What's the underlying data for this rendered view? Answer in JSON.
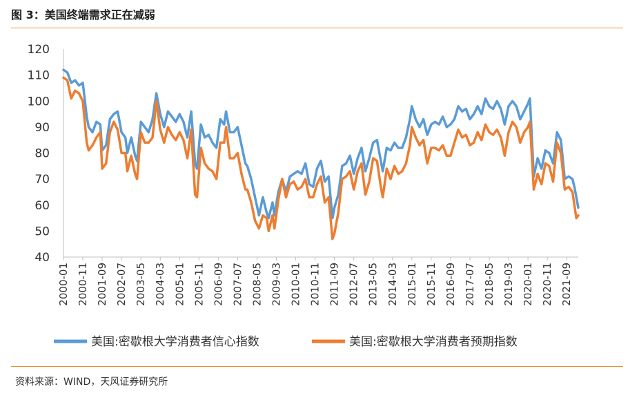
{
  "figure": {
    "title": "图 3：美国终端需求正在减弱",
    "source": "资料来源：WIND，天风证券研究所"
  },
  "colors": {
    "series_1": "#5b9bd5",
    "series_2": "#ed7d31",
    "rule": "#e0922f",
    "axis": "#bfbfbf"
  },
  "chart_data": {
    "type": "line",
    "ylim": [
      40,
      120
    ],
    "yticks": [
      40,
      50,
      60,
      70,
      80,
      90,
      100,
      110,
      120
    ],
    "xtick_labels": [
      "2000-01",
      "2000-11",
      "2001-09",
      "2002-07",
      "2003-05",
      "2004-03",
      "2005-01",
      "2005-11",
      "2006-09",
      "2007-07",
      "2008-05",
      "2009-03",
      "2010-01",
      "2010-11",
      "2011-09",
      "2012-07",
      "2013-05",
      "2014-03",
      "2015-01",
      "2015-11",
      "2016-09",
      "2017-07",
      "2018-05",
      "2019-03",
      "2020-01",
      "2020-11",
      "2021-09"
    ],
    "x_start": "2000-01",
    "x_end": "2022-03",
    "legend_position": "bottom",
    "grid": false,
    "series": [
      {
        "name": "美国:密歇根大学消费者信心指数",
        "points": [
          [
            "2000-01",
            112
          ],
          [
            "2000-03",
            111
          ],
          [
            "2000-05",
            107
          ],
          [
            "2000-07",
            108
          ],
          [
            "2000-09",
            106
          ],
          [
            "2000-11",
            107
          ],
          [
            "2001-01",
            94
          ],
          [
            "2001-02",
            90
          ],
          [
            "2001-04",
            88
          ],
          [
            "2001-06",
            92
          ],
          [
            "2001-08",
            91
          ],
          [
            "2001-09",
            81
          ],
          [
            "2001-11",
            83
          ],
          [
            "2002-01",
            93
          ],
          [
            "2002-03",
            95
          ],
          [
            "2002-05",
            96
          ],
          [
            "2002-07",
            88
          ],
          [
            "2002-09",
            86
          ],
          [
            "2002-10",
            80
          ],
          [
            "2002-12",
            86
          ],
          [
            "2003-02",
            79
          ],
          [
            "2003-03",
            77
          ],
          [
            "2003-05",
            92
          ],
          [
            "2003-07",
            90
          ],
          [
            "2003-09",
            88
          ],
          [
            "2003-11",
            93
          ],
          [
            "2004-01",
            103
          ],
          [
            "2004-03",
            95
          ],
          [
            "2004-05",
            90
          ],
          [
            "2004-07",
            96
          ],
          [
            "2004-09",
            94
          ],
          [
            "2004-11",
            92
          ],
          [
            "2005-01",
            95
          ],
          [
            "2005-03",
            92
          ],
          [
            "2005-05",
            86
          ],
          [
            "2005-07",
            96
          ],
          [
            "2005-09",
            76
          ],
          [
            "2005-10",
            74
          ],
          [
            "2005-12",
            91
          ],
          [
            "2006-02",
            86
          ],
          [
            "2006-04",
            87
          ],
          [
            "2006-06",
            84
          ],
          [
            "2006-08",
            82
          ],
          [
            "2006-10",
            93
          ],
          [
            "2006-12",
            91
          ],
          [
            "2007-01",
            96
          ],
          [
            "2007-03",
            88
          ],
          [
            "2007-05",
            88
          ],
          [
            "2007-07",
            90
          ],
          [
            "2007-09",
            83
          ],
          [
            "2007-11",
            76
          ],
          [
            "2007-12",
            75
          ],
          [
            "2008-02",
            70
          ],
          [
            "2008-04",
            63
          ],
          [
            "2008-06",
            56
          ],
          [
            "2008-08",
            63
          ],
          [
            "2008-10",
            57
          ],
          [
            "2008-11",
            55
          ],
          [
            "2009-01",
            61
          ],
          [
            "2009-02",
            56
          ],
          [
            "2009-04",
            65
          ],
          [
            "2009-06",
            70
          ],
          [
            "2009-08",
            65
          ],
          [
            "2009-10",
            71
          ],
          [
            "2009-12",
            72
          ],
          [
            "2010-02",
            73
          ],
          [
            "2010-04",
            72
          ],
          [
            "2010-06",
            76
          ],
          [
            "2010-08",
            68
          ],
          [
            "2010-10",
            67
          ],
          [
            "2010-12",
            74
          ],
          [
            "2011-02",
            77
          ],
          [
            "2011-04",
            69
          ],
          [
            "2011-06",
            71
          ],
          [
            "2011-08",
            55
          ],
          [
            "2011-09",
            59
          ],
          [
            "2011-11",
            64
          ],
          [
            "2012-01",
            75
          ],
          [
            "2012-03",
            76
          ],
          [
            "2012-05",
            79
          ],
          [
            "2012-07",
            72
          ],
          [
            "2012-09",
            78
          ],
          [
            "2012-11",
            82
          ],
          [
            "2013-01",
            73
          ],
          [
            "2013-03",
            78
          ],
          [
            "2013-05",
            84
          ],
          [
            "2013-07",
            85
          ],
          [
            "2013-09",
            77
          ],
          [
            "2013-10",
            73
          ],
          [
            "2013-12",
            82
          ],
          [
            "2014-02",
            81
          ],
          [
            "2014-04",
            84
          ],
          [
            "2014-06",
            82
          ],
          [
            "2014-08",
            82
          ],
          [
            "2014-10",
            86
          ],
          [
            "2014-12",
            93
          ],
          [
            "2015-01",
            98
          ],
          [
            "2015-03",
            93
          ],
          [
            "2015-05",
            90
          ],
          [
            "2015-07",
            93
          ],
          [
            "2015-09",
            87
          ],
          [
            "2015-11",
            91
          ],
          [
            "2016-01",
            92
          ],
          [
            "2016-03",
            91
          ],
          [
            "2016-05",
            94
          ],
          [
            "2016-07",
            90
          ],
          [
            "2016-09",
            91
          ],
          [
            "2016-11",
            93
          ],
          [
            "2017-01",
            98
          ],
          [
            "2017-03",
            96
          ],
          [
            "2017-05",
            97
          ],
          [
            "2017-07",
            93
          ],
          [
            "2017-09",
            95
          ],
          [
            "2017-11",
            98
          ],
          [
            "2018-01",
            95
          ],
          [
            "2018-03",
            101
          ],
          [
            "2018-05",
            98
          ],
          [
            "2018-07",
            97
          ],
          [
            "2018-09",
            100
          ],
          [
            "2018-11",
            97
          ],
          [
            "2019-01",
            91
          ],
          [
            "2019-03",
            98
          ],
          [
            "2019-05",
            100
          ],
          [
            "2019-07",
            98
          ],
          [
            "2019-09",
            93
          ],
          [
            "2019-11",
            96
          ],
          [
            "2020-01",
            99
          ],
          [
            "2020-02",
            101
          ],
          [
            "2020-04",
            71
          ],
          [
            "2020-06",
            78
          ],
          [
            "2020-08",
            74
          ],
          [
            "2020-10",
            81
          ],
          [
            "2020-12",
            80
          ],
          [
            "2021-02",
            76
          ],
          [
            "2021-04",
            88
          ],
          [
            "2021-06",
            85
          ],
          [
            "2021-08",
            70
          ],
          [
            "2021-10",
            71
          ],
          [
            "2021-12",
            70
          ],
          [
            "2022-01",
            67
          ],
          [
            "2022-02",
            63
          ],
          [
            "2022-03",
            59
          ]
        ]
      },
      {
        "name": "美国:密歇根大学消费者预期指数",
        "points": [
          [
            "2000-01",
            109
          ],
          [
            "2000-03",
            108
          ],
          [
            "2000-05",
            101
          ],
          [
            "2000-07",
            104
          ],
          [
            "2000-09",
            103
          ],
          [
            "2000-11",
            100
          ],
          [
            "2001-01",
            84
          ],
          [
            "2001-02",
            81
          ],
          [
            "2001-04",
            83
          ],
          [
            "2001-06",
            86
          ],
          [
            "2001-08",
            88
          ],
          [
            "2001-09",
            74
          ],
          [
            "2001-11",
            76
          ],
          [
            "2002-01",
            88
          ],
          [
            "2002-03",
            92
          ],
          [
            "2002-05",
            89
          ],
          [
            "2002-07",
            80
          ],
          [
            "2002-09",
            80
          ],
          [
            "2002-10",
            73
          ],
          [
            "2002-12",
            79
          ],
          [
            "2003-02",
            72
          ],
          [
            "2003-03",
            70
          ],
          [
            "2003-05",
            88
          ],
          [
            "2003-07",
            84
          ],
          [
            "2003-09",
            84
          ],
          [
            "2003-11",
            86
          ],
          [
            "2004-01",
            100
          ],
          [
            "2004-03",
            89
          ],
          [
            "2004-05",
            84
          ],
          [
            "2004-07",
            90
          ],
          [
            "2004-09",
            87
          ],
          [
            "2004-11",
            85
          ],
          [
            "2005-01",
            88
          ],
          [
            "2005-03",
            85
          ],
          [
            "2005-05",
            78
          ],
          [
            "2005-07",
            89
          ],
          [
            "2005-09",
            64
          ],
          [
            "2005-10",
            63
          ],
          [
            "2005-12",
            82
          ],
          [
            "2006-02",
            76
          ],
          [
            "2006-04",
            74
          ],
          [
            "2006-06",
            73
          ],
          [
            "2006-08",
            70
          ],
          [
            "2006-10",
            84
          ],
          [
            "2006-12",
            84
          ],
          [
            "2007-01",
            90
          ],
          [
            "2007-03",
            78
          ],
          [
            "2007-05",
            78
          ],
          [
            "2007-07",
            80
          ],
          [
            "2007-09",
            72
          ],
          [
            "2007-11",
            66
          ],
          [
            "2007-12",
            66
          ],
          [
            "2008-02",
            61
          ],
          [
            "2008-04",
            54
          ],
          [
            "2008-06",
            51
          ],
          [
            "2008-08",
            56
          ],
          [
            "2008-10",
            55
          ],
          [
            "2008-11",
            50
          ],
          [
            "2009-01",
            56
          ],
          [
            "2009-02",
            51
          ],
          [
            "2009-04",
            62
          ],
          [
            "2009-06",
            70
          ],
          [
            "2009-08",
            63
          ],
          [
            "2009-10",
            68
          ],
          [
            "2009-12",
            69
          ],
          [
            "2010-02",
            66
          ],
          [
            "2010-04",
            67
          ],
          [
            "2010-06",
            70
          ],
          [
            "2010-08",
            63
          ],
          [
            "2010-10",
            63
          ],
          [
            "2010-12",
            68
          ],
          [
            "2011-02",
            71
          ],
          [
            "2011-04",
            61
          ],
          [
            "2011-06",
            63
          ],
          [
            "2011-08",
            47
          ],
          [
            "2011-09",
            49
          ],
          [
            "2011-11",
            57
          ],
          [
            "2012-01",
            70
          ],
          [
            "2012-03",
            71
          ],
          [
            "2012-05",
            73
          ],
          [
            "2012-07",
            66
          ],
          [
            "2012-09",
            73
          ],
          [
            "2012-11",
            76
          ],
          [
            "2013-01",
            64
          ],
          [
            "2013-03",
            69
          ],
          [
            "2013-05",
            78
          ],
          [
            "2013-07",
            77
          ],
          [
            "2013-09",
            67
          ],
          [
            "2013-10",
            63
          ],
          [
            "2013-12",
            74
          ],
          [
            "2014-02",
            70
          ],
          [
            "2014-04",
            75
          ],
          [
            "2014-06",
            72
          ],
          [
            "2014-08",
            73
          ],
          [
            "2014-10",
            76
          ],
          [
            "2014-12",
            83
          ],
          [
            "2015-01",
            90
          ],
          [
            "2015-03",
            86
          ],
          [
            "2015-05",
            83
          ],
          [
            "2015-07",
            85
          ],
          [
            "2015-09",
            76
          ],
          [
            "2015-11",
            82
          ],
          [
            "2016-01",
            82
          ],
          [
            "2016-03",
            81
          ],
          [
            "2016-05",
            83
          ],
          [
            "2016-07",
            79
          ],
          [
            "2016-09",
            79
          ],
          [
            "2016-11",
            84
          ],
          [
            "2017-01",
            89
          ],
          [
            "2017-03",
            86
          ],
          [
            "2017-05",
            87
          ],
          [
            "2017-07",
            83
          ],
          [
            "2017-09",
            84
          ],
          [
            "2017-11",
            88
          ],
          [
            "2018-01",
            85
          ],
          [
            "2018-03",
            91
          ],
          [
            "2018-05",
            88
          ],
          [
            "2018-07",
            87
          ],
          [
            "2018-09",
            89
          ],
          [
            "2018-11",
            86
          ],
          [
            "2019-01",
            79
          ],
          [
            "2019-03",
            88
          ],
          [
            "2019-05",
            92
          ],
          [
            "2019-07",
            90
          ],
          [
            "2019-09",
            84
          ],
          [
            "2019-11",
            88
          ],
          [
            "2020-01",
            90
          ],
          [
            "2020-02",
            92
          ],
          [
            "2020-04",
            66
          ],
          [
            "2020-06",
            72
          ],
          [
            "2020-08",
            68
          ],
          [
            "2020-10",
            76
          ],
          [
            "2020-12",
            75
          ],
          [
            "2021-02",
            69
          ],
          [
            "2021-04",
            84
          ],
          [
            "2021-06",
            80
          ],
          [
            "2021-08",
            66
          ],
          [
            "2021-10",
            67
          ],
          [
            "2021-12",
            65
          ],
          [
            "2022-01",
            60
          ],
          [
            "2022-02",
            55
          ],
          [
            "2022-03",
            56
          ]
        ]
      }
    ]
  }
}
